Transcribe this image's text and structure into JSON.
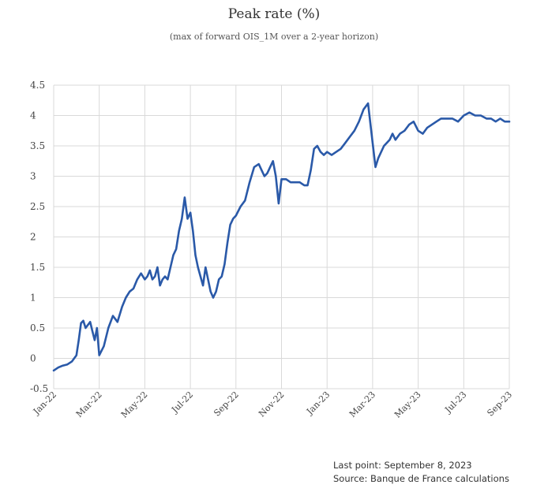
{
  "header": {
    "title": "Peak rate (%)",
    "subtitle": "(max of forward OIS_1M over a 2-year horizon)"
  },
  "footer": {
    "last_point": "Last point: September 8, 2023",
    "source": "Source: Banque de France calculations"
  },
  "colors": {
    "line": "#2a59a8",
    "grid": "#d9d9d9",
    "text": "#444444"
  },
  "chart_data": {
    "type": "line",
    "title": "Peak rate (%)",
    "subtitle": "(max of forward OIS_1M over a 2-year horizon)",
    "xlabel": "",
    "ylabel": "",
    "ylim": [
      -0.5,
      4.5
    ],
    "yticks": [
      "-0.5",
      "0",
      "0.5",
      "1",
      "1.5",
      "2",
      "2.5",
      "3",
      "3.5",
      "4",
      "4.5"
    ],
    "xticks": [
      "Jan-22",
      "Mar-22",
      "May-22",
      "Jul-22",
      "Sep-22",
      "Nov-22",
      "Jan-23",
      "Mar-23",
      "May-23",
      "Jul-23",
      "Sep-23"
    ],
    "grid": true,
    "legend": "none",
    "series": [
      {
        "x": [
          "Jan-22",
          "Jan-22",
          "Jan-22",
          "Jan-22",
          "Jan-22",
          "Feb-22",
          "Feb-22",
          "Feb-22",
          "Feb-22",
          "Feb-22",
          "Feb-22",
          "Feb-22",
          "Feb-22",
          "Feb-22",
          "Feb-22",
          "Mar-22",
          "Mar-22",
          "Mar-22",
          "Mar-22",
          "Mar-22",
          "Apr-22",
          "Apr-22",
          "Apr-22",
          "Apr-22",
          "Apr-22",
          "Apr-22",
          "May-22",
          "May-22",
          "May-22",
          "May-22",
          "May-22",
          "May-22",
          "May-22",
          "May-22",
          "May-22",
          "Jun-22",
          "Jun-22",
          "Jun-22",
          "Jun-22",
          "Jun-22",
          "Jun-22",
          "Jun-22",
          "Jun-22",
          "Jul-22",
          "Jul-22",
          "Jul-22",
          "Jul-22",
          "Jul-22",
          "Jul-22",
          "Jul-22",
          "Jul-22",
          "Jul-22",
          "Aug-22",
          "Aug-22",
          "Aug-22",
          "Aug-22",
          "Aug-22",
          "Aug-22",
          "Aug-22",
          "Aug-22",
          "Sep-22",
          "Sep-22",
          "Sep-22",
          "Sep-22",
          "Sep-22",
          "Oct-22",
          "Oct-22",
          "Oct-22",
          "Oct-22",
          "Oct-22",
          "Oct-22",
          "Oct-22",
          "Oct-22",
          "Nov-22",
          "Nov-22",
          "Nov-22",
          "Nov-22",
          "Nov-22",
          "Dec-22",
          "Dec-22",
          "Dec-22",
          "Dec-22",
          "Dec-22",
          "Dec-22",
          "Dec-22",
          "Jan-23",
          "Jan-23",
          "Jan-23",
          "Jan-23",
          "Jan-23",
          "Feb-23",
          "Feb-23",
          "Feb-23",
          "Feb-23",
          "Feb-23",
          "Mar-23",
          "Mar-23",
          "Mar-23",
          "Mar-23",
          "Mar-23",
          "Mar-23",
          "Mar-23",
          "Mar-23",
          "Apr-23",
          "Apr-23",
          "Apr-23",
          "Apr-23",
          "Apr-23",
          "May-23",
          "May-23",
          "May-23",
          "May-23",
          "May-23",
          "Jun-23",
          "Jun-23",
          "Jun-23",
          "Jun-23",
          "Jul-23",
          "Jul-23",
          "Jul-23",
          "Jul-23",
          "Aug-23",
          "Aug-23",
          "Aug-23",
          "Aug-23",
          "Aug-23",
          "Sep-23",
          "Sep-23"
        ],
        "values": [
          -0.2,
          -0.15,
          -0.12,
          -0.1,
          -0.05,
          0.05,
          0.3,
          0.58,
          0.62,
          0.5,
          0.55,
          0.6,
          0.45,
          0.3,
          0.5,
          0.05,
          0.2,
          0.5,
          0.7,
          0.6,
          0.85,
          1.0,
          1.1,
          1.15,
          1.3,
          1.4,
          1.3,
          1.35,
          1.45,
          1.3,
          1.35,
          1.5,
          1.2,
          1.3,
          1.35,
          1.3,
          1.5,
          1.7,
          1.8,
          2.1,
          2.3,
          2.65,
          2.3,
          2.4,
          2.1,
          1.7,
          1.5,
          1.35,
          1.2,
          1.5,
          1.3,
          1.1,
          1.0,
          1.1,
          1.3,
          1.35,
          1.55,
          1.9,
          2.2,
          2.3,
          2.35,
          2.5,
          2.6,
          2.9,
          3.15,
          3.2,
          3.1,
          3.0,
          3.05,
          3.15,
          3.25,
          3.0,
          2.55,
          2.95,
          2.95,
          2.9,
          2.9,
          2.9,
          2.85,
          2.85,
          3.1,
          3.45,
          3.5,
          3.4,
          3.35,
          3.4,
          3.35,
          3.4,
          3.45,
          3.55,
          3.65,
          3.75,
          3.9,
          4.1,
          4.2,
          3.55,
          3.15,
          3.3,
          3.4,
          3.5,
          3.55,
          3.6,
          3.7,
          3.6,
          3.7,
          3.75,
          3.85,
          3.9,
          3.75,
          3.7,
          3.8,
          3.85,
          3.9,
          3.95,
          3.95,
          3.95,
          3.9,
          4.0,
          4.05,
          4.0,
          4.0,
          3.95,
          3.95,
          3.9,
          3.95,
          3.9,
          3.9,
          3.9
        ]
      }
    ]
  }
}
